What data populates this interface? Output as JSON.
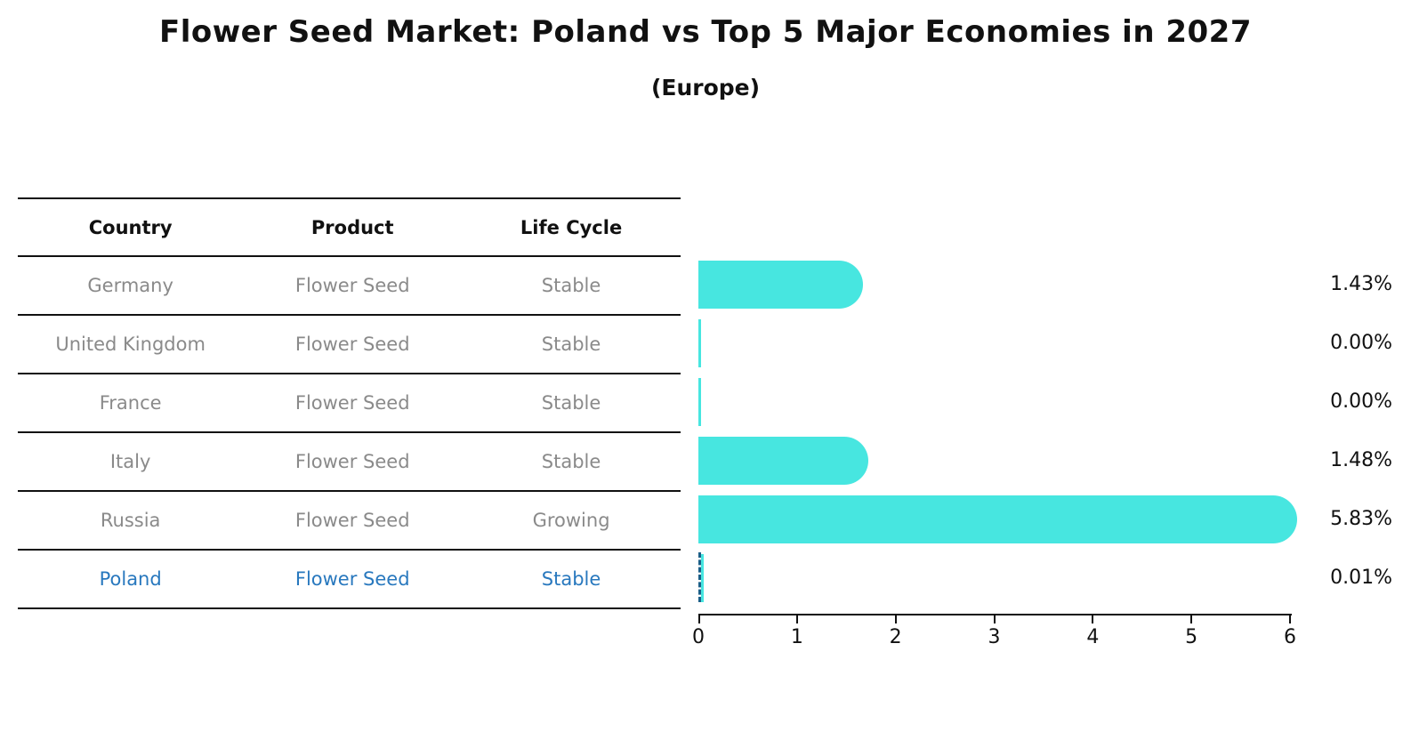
{
  "title": "Flower Seed Market: Poland vs Top 5 Major Economies in 2027",
  "subtitle": "(Europe)",
  "table": {
    "headers": {
      "country": "Country",
      "product": "Product",
      "life_cycle": "Life Cycle"
    },
    "rows": [
      {
        "country": "Germany",
        "product": "Flower Seed",
        "life_cycle": "Stable"
      },
      {
        "country": "United Kingdom",
        "product": "Flower Seed",
        "life_cycle": "Stable"
      },
      {
        "country": "France",
        "product": "Flower Seed",
        "life_cycle": "Stable"
      },
      {
        "country": "Italy",
        "product": "Flower Seed",
        "life_cycle": "Stable"
      },
      {
        "country": "Russia",
        "product": "Flower Seed",
        "life_cycle": "Growing"
      },
      {
        "country": "Poland",
        "product": "Flower Seed",
        "life_cycle": "Stable"
      }
    ]
  },
  "chart_data": {
    "type": "bar",
    "orientation": "horizontal",
    "title": "Flower Seed Market: Poland vs Top 5 Major Economies in 2027",
    "subtitle": "(Europe)",
    "categories": [
      "Germany",
      "United Kingdom",
      "France",
      "Italy",
      "Russia",
      "Poland"
    ],
    "values": [
      1.43,
      0.0,
      0.0,
      1.48,
      5.83,
      0.01
    ],
    "value_labels": [
      "1.43%",
      "0.00%",
      "0.00%",
      "1.48%",
      "5.83%",
      "0.01%"
    ],
    "xlim": [
      0,
      6
    ],
    "xticks": [
      0,
      1,
      2,
      3,
      4,
      5,
      6
    ],
    "xlabel": "",
    "ylabel": "",
    "grid": false,
    "legend": "none",
    "highlight_country": "Poland"
  },
  "colors": {
    "bar": "#47E6E0",
    "highlight_text": "#2878BE",
    "highlight_marker": "#1B5E87",
    "row_text": "#8A8A8A",
    "heading_text": "#111111"
  }
}
